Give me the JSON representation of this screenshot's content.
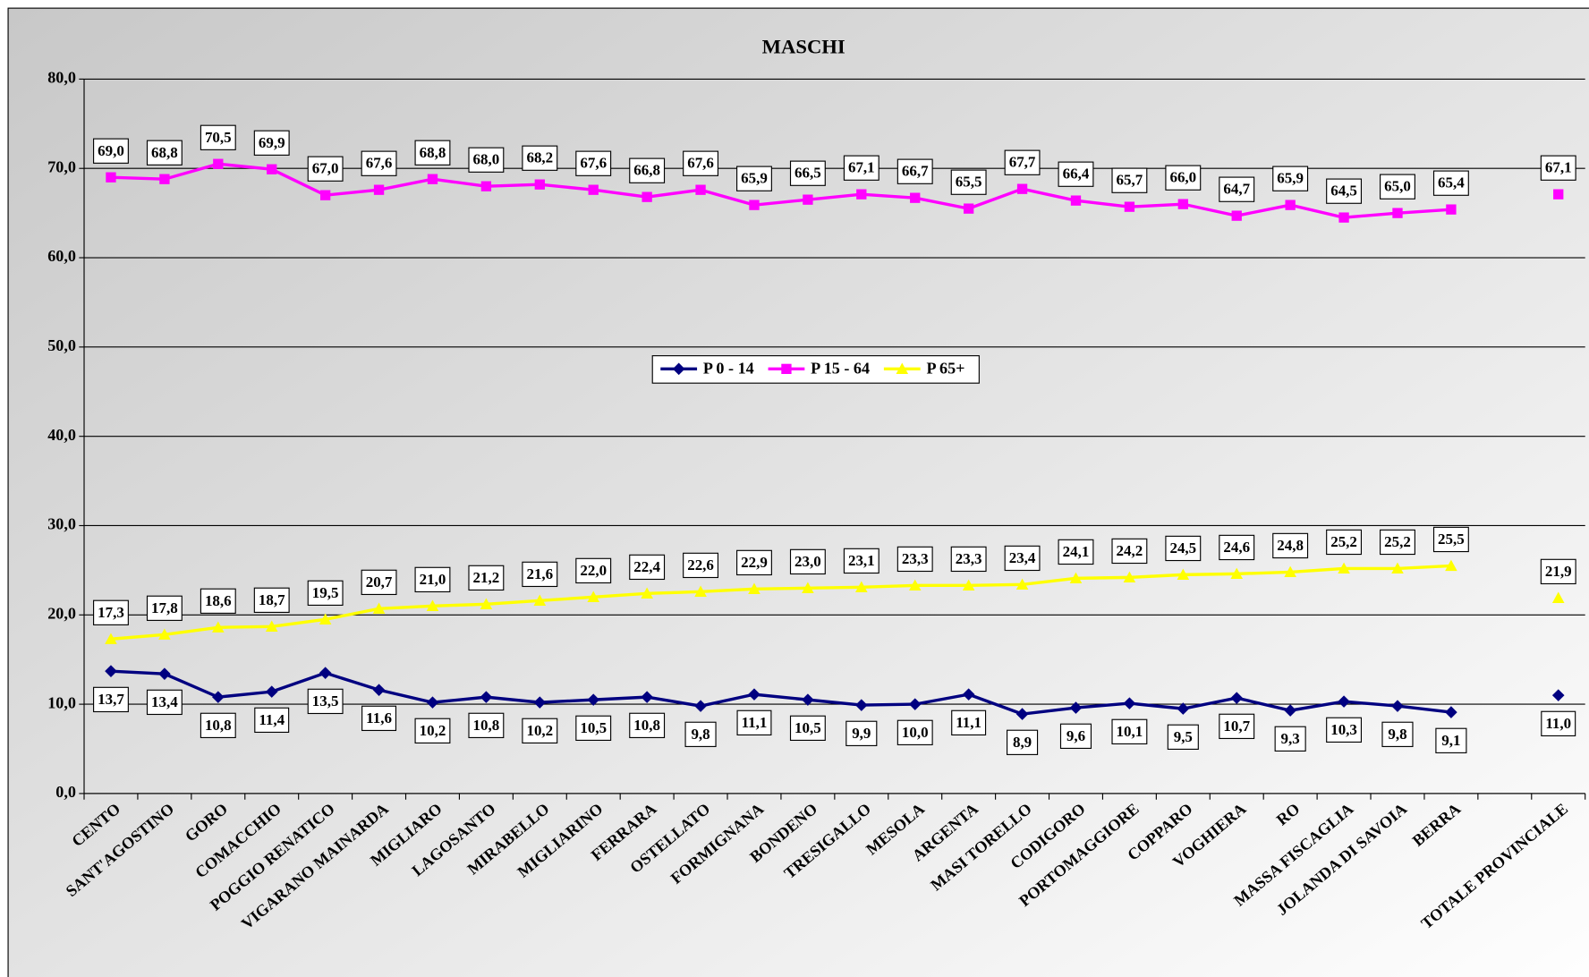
{
  "chart_data": {
    "type": "line",
    "title": "MASCHI",
    "categories": [
      "CENTO",
      "SANT'AGOSTINO",
      "GORO",
      "COMACCHIO",
      "POGGIO RENATICO",
      "VIGARANO MAINARDA",
      "MIGLIARO",
      "LAGOSANTO",
      "MIRABELLO",
      "MIGLIARINO",
      "FERRARA",
      "OSTELLATO",
      "FORMIGNANA",
      "BONDENO",
      "TRESIGALLO",
      "MESOLA",
      "ARGENTA",
      "MASI TORELLO",
      "CODIGORO",
      "PORTOMAGGIORE",
      "COPPARO",
      "VOGHIERA",
      "RO",
      "MASSA FISCAGLIA",
      "JOLANDA DI SAVOIA",
      "BERRA",
      null,
      "TOTALE PROVINCIALE"
    ],
    "series": [
      {
        "name": "P 0 - 14",
        "color": "#000080",
        "marker": "diamond",
        "values": [
          13.7,
          13.4,
          10.8,
          11.4,
          13.5,
          11.6,
          10.2,
          10.8,
          10.2,
          10.5,
          10.8,
          9.8,
          11.1,
          10.5,
          9.9,
          10.0,
          11.1,
          8.9,
          9.6,
          10.1,
          9.5,
          10.7,
          9.3,
          10.3,
          9.8,
          9.1,
          null,
          11.0
        ],
        "value_labels": [
          "13,7",
          "13,4",
          "10,8",
          "11,4",
          "13,5",
          "11,6",
          "10,2",
          "10,8",
          "10,2",
          "10,5",
          "10,8",
          "9,8",
          "11,1",
          "10,5",
          "9,9",
          "10,0",
          "11,1",
          "8,9",
          "9,6",
          "10,1",
          "9,5",
          "10,7",
          "9,3",
          "10,3",
          "9,8",
          "9,1",
          null,
          "11,0"
        ]
      },
      {
        "name": "P 15 - 64",
        "color": "#FF00FF",
        "marker": "square",
        "values": [
          69.0,
          68.8,
          70.5,
          69.9,
          67.0,
          67.6,
          68.8,
          68.0,
          68.2,
          67.6,
          66.8,
          67.6,
          65.9,
          66.5,
          67.1,
          66.7,
          65.5,
          67.7,
          66.4,
          65.7,
          66.0,
          64.7,
          65.9,
          64.5,
          65.0,
          65.4,
          null,
          67.1
        ],
        "value_labels": [
          "69,0",
          "68,8",
          "70,5",
          "69,9",
          "67,0",
          "67,6",
          "68,8",
          "68,0",
          "68,2",
          "67,6",
          "66,8",
          "67,6",
          "65,9",
          "66,5",
          "67,1",
          "66,7",
          "65,5",
          "67,7",
          "66,4",
          "65,7",
          "66,0",
          "64,7",
          "65,9",
          "64,5",
          "65,0",
          "65,4",
          null,
          "67,1"
        ]
      },
      {
        "name": "P 65+",
        "color": "#FFFF00",
        "marker": "triangle",
        "values": [
          17.3,
          17.8,
          18.6,
          18.7,
          19.5,
          20.7,
          21.0,
          21.2,
          21.6,
          22.0,
          22.4,
          22.6,
          22.9,
          23.0,
          23.1,
          23.3,
          23.3,
          23.4,
          24.1,
          24.2,
          24.5,
          24.6,
          24.8,
          25.2,
          25.2,
          25.5,
          null,
          21.9
        ],
        "value_labels": [
          "17,3",
          "17,8",
          "18,6",
          "18,7",
          "19,5",
          "20,7",
          "21,0",
          "21,2",
          "21,6",
          "22,0",
          "22,4",
          "22,6",
          "22,9",
          "23,0",
          "23,1",
          "23,3",
          "23,3",
          "23,4",
          "24,1",
          "24,2",
          "24,5",
          "24,6",
          "24,8",
          "25,2",
          "25,2",
          "25,5",
          null,
          "21,9"
        ]
      }
    ],
    "ylim": [
      0,
      80
    ],
    "yticks": [
      {
        "value": 0,
        "label": "0,0"
      },
      {
        "value": 10,
        "label": "10,0"
      },
      {
        "value": 20,
        "label": "20,0"
      },
      {
        "value": 30,
        "label": "30,0"
      },
      {
        "value": 40,
        "label": "40,0"
      },
      {
        "value": 50,
        "label": "50,0"
      },
      {
        "value": 60,
        "label": "60,0"
      },
      {
        "value": 70,
        "label": "70,0"
      },
      {
        "value": 80,
        "label": "80,0"
      }
    ],
    "grid": true,
    "legend": "center"
  }
}
